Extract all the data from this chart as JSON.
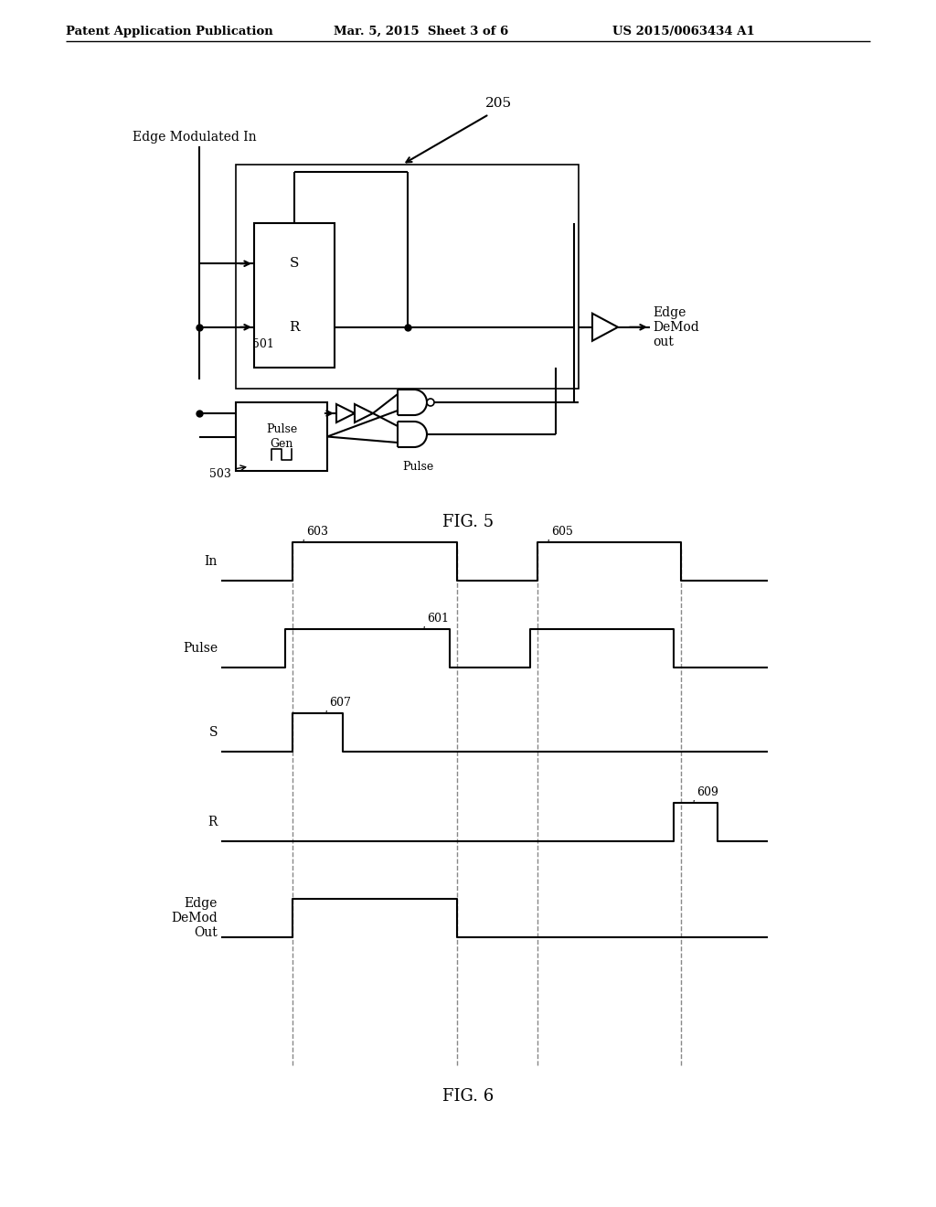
{
  "bg_color": "#ffffff",
  "header_left": "Patent Application Publication",
  "header_mid": "Mar. 5, 2015  Sheet 3 of 6",
  "header_right": "US 2015/0063434 A1",
  "fig5_label": "FIG. 5",
  "fig6_label": "FIG. 6",
  "line_color": "#000000",
  "dashed_color": "#888888",
  "fig5": {
    "label_205": "205",
    "label_edge_in": "Edge Modulated In",
    "label_edge_out": "Edge\nDeMod\nout",
    "label_S": "S",
    "label_R": "R",
    "label_pulse_gen": "Pulse\nGen",
    "label_pulse": "Pulse",
    "label_501": "501",
    "label_503": "503"
  },
  "fig6": {
    "signals": [
      "In",
      "Pulse",
      "S",
      "R",
      "Edge\nDeMod\nOut"
    ],
    "labels": [
      "603",
      "605",
      "601",
      "607",
      "609"
    ]
  }
}
